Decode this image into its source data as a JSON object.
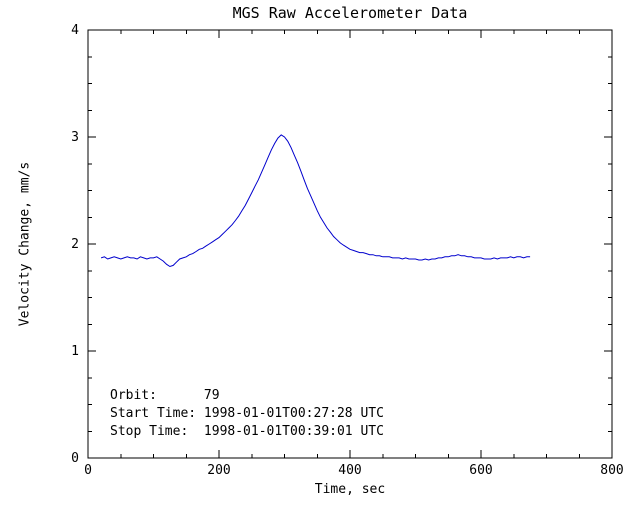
{
  "title": "MGS Raw Accelerometer Data",
  "annotations": {
    "orbit_label": "Orbit:",
    "orbit_value": "79",
    "orbit_line": "Orbit:      79",
    "start_line": "Start Time: 1998-01-01T00:27:28 UTC",
    "stop_line": "Stop Time:  1998-01-01T00:39:01 UTC"
  },
  "colors": {
    "line": "#0000cd",
    "axis": "#000000",
    "background": "#ffffff"
  },
  "chart_data": {
    "type": "line",
    "title": "MGS Raw Accelerometer Data",
    "xlabel": "Time, sec",
    "ylabel": "Velocity Change, mm/s",
    "xlim": [
      0,
      800
    ],
    "ylim": [
      0,
      4
    ],
    "xticks": [
      0,
      200,
      400,
      600,
      800
    ],
    "yticks": [
      0,
      1,
      2,
      3,
      4
    ],
    "x_minor_interval": 50,
    "y_minor_interval": 0.25,
    "grid": false,
    "legend": "none",
    "series_name": "velocity-change",
    "x": [
      20,
      25,
      30,
      35,
      40,
      45,
      50,
      55,
      60,
      65,
      70,
      75,
      80,
      85,
      90,
      95,
      100,
      105,
      110,
      115,
      120,
      125,
      130,
      135,
      140,
      145,
      150,
      155,
      160,
      165,
      170,
      175,
      180,
      185,
      190,
      195,
      200,
      205,
      210,
      215,
      220,
      225,
      230,
      235,
      240,
      245,
      250,
      255,
      260,
      265,
      270,
      275,
      280,
      285,
      290,
      295,
      300,
      305,
      310,
      315,
      320,
      325,
      330,
      335,
      340,
      345,
      350,
      355,
      360,
      365,
      370,
      375,
      380,
      385,
      390,
      395,
      400,
      405,
      410,
      415,
      420,
      425,
      430,
      435,
      440,
      445,
      450,
      455,
      460,
      465,
      470,
      475,
      480,
      485,
      490,
      495,
      500,
      505,
      510,
      515,
      520,
      525,
      530,
      535,
      540,
      545,
      550,
      555,
      560,
      565,
      570,
      575,
      580,
      585,
      590,
      595,
      600,
      605,
      610,
      615,
      620,
      625,
      630,
      635,
      640,
      645,
      650,
      655,
      660,
      665,
      670,
      675
    ],
    "y": [
      1.87,
      1.88,
      1.86,
      1.87,
      1.88,
      1.87,
      1.86,
      1.87,
      1.88,
      1.87,
      1.87,
      1.86,
      1.88,
      1.87,
      1.86,
      1.87,
      1.87,
      1.88,
      1.86,
      1.84,
      1.81,
      1.79,
      1.8,
      1.83,
      1.86,
      1.87,
      1.88,
      1.9,
      1.91,
      1.93,
      1.95,
      1.96,
      1.98,
      2.0,
      2.02,
      2.04,
      2.06,
      2.09,
      2.12,
      2.15,
      2.18,
      2.22,
      2.26,
      2.31,
      2.36,
      2.42,
      2.48,
      2.54,
      2.6,
      2.67,
      2.74,
      2.81,
      2.88,
      2.94,
      2.99,
      3.02,
      3.0,
      2.96,
      2.9,
      2.83,
      2.76,
      2.68,
      2.6,
      2.52,
      2.45,
      2.38,
      2.31,
      2.25,
      2.2,
      2.15,
      2.11,
      2.07,
      2.04,
      2.01,
      1.99,
      1.97,
      1.95,
      1.94,
      1.93,
      1.92,
      1.92,
      1.91,
      1.9,
      1.9,
      1.89,
      1.89,
      1.88,
      1.88,
      1.88,
      1.87,
      1.87,
      1.87,
      1.86,
      1.87,
      1.86,
      1.86,
      1.86,
      1.85,
      1.85,
      1.86,
      1.85,
      1.86,
      1.86,
      1.87,
      1.87,
      1.88,
      1.88,
      1.89,
      1.89,
      1.9,
      1.89,
      1.89,
      1.88,
      1.88,
      1.87,
      1.87,
      1.87,
      1.86,
      1.86,
      1.86,
      1.87,
      1.86,
      1.87,
      1.87,
      1.87,
      1.88,
      1.87,
      1.88,
      1.88,
      1.87,
      1.88,
      1.88
    ]
  }
}
